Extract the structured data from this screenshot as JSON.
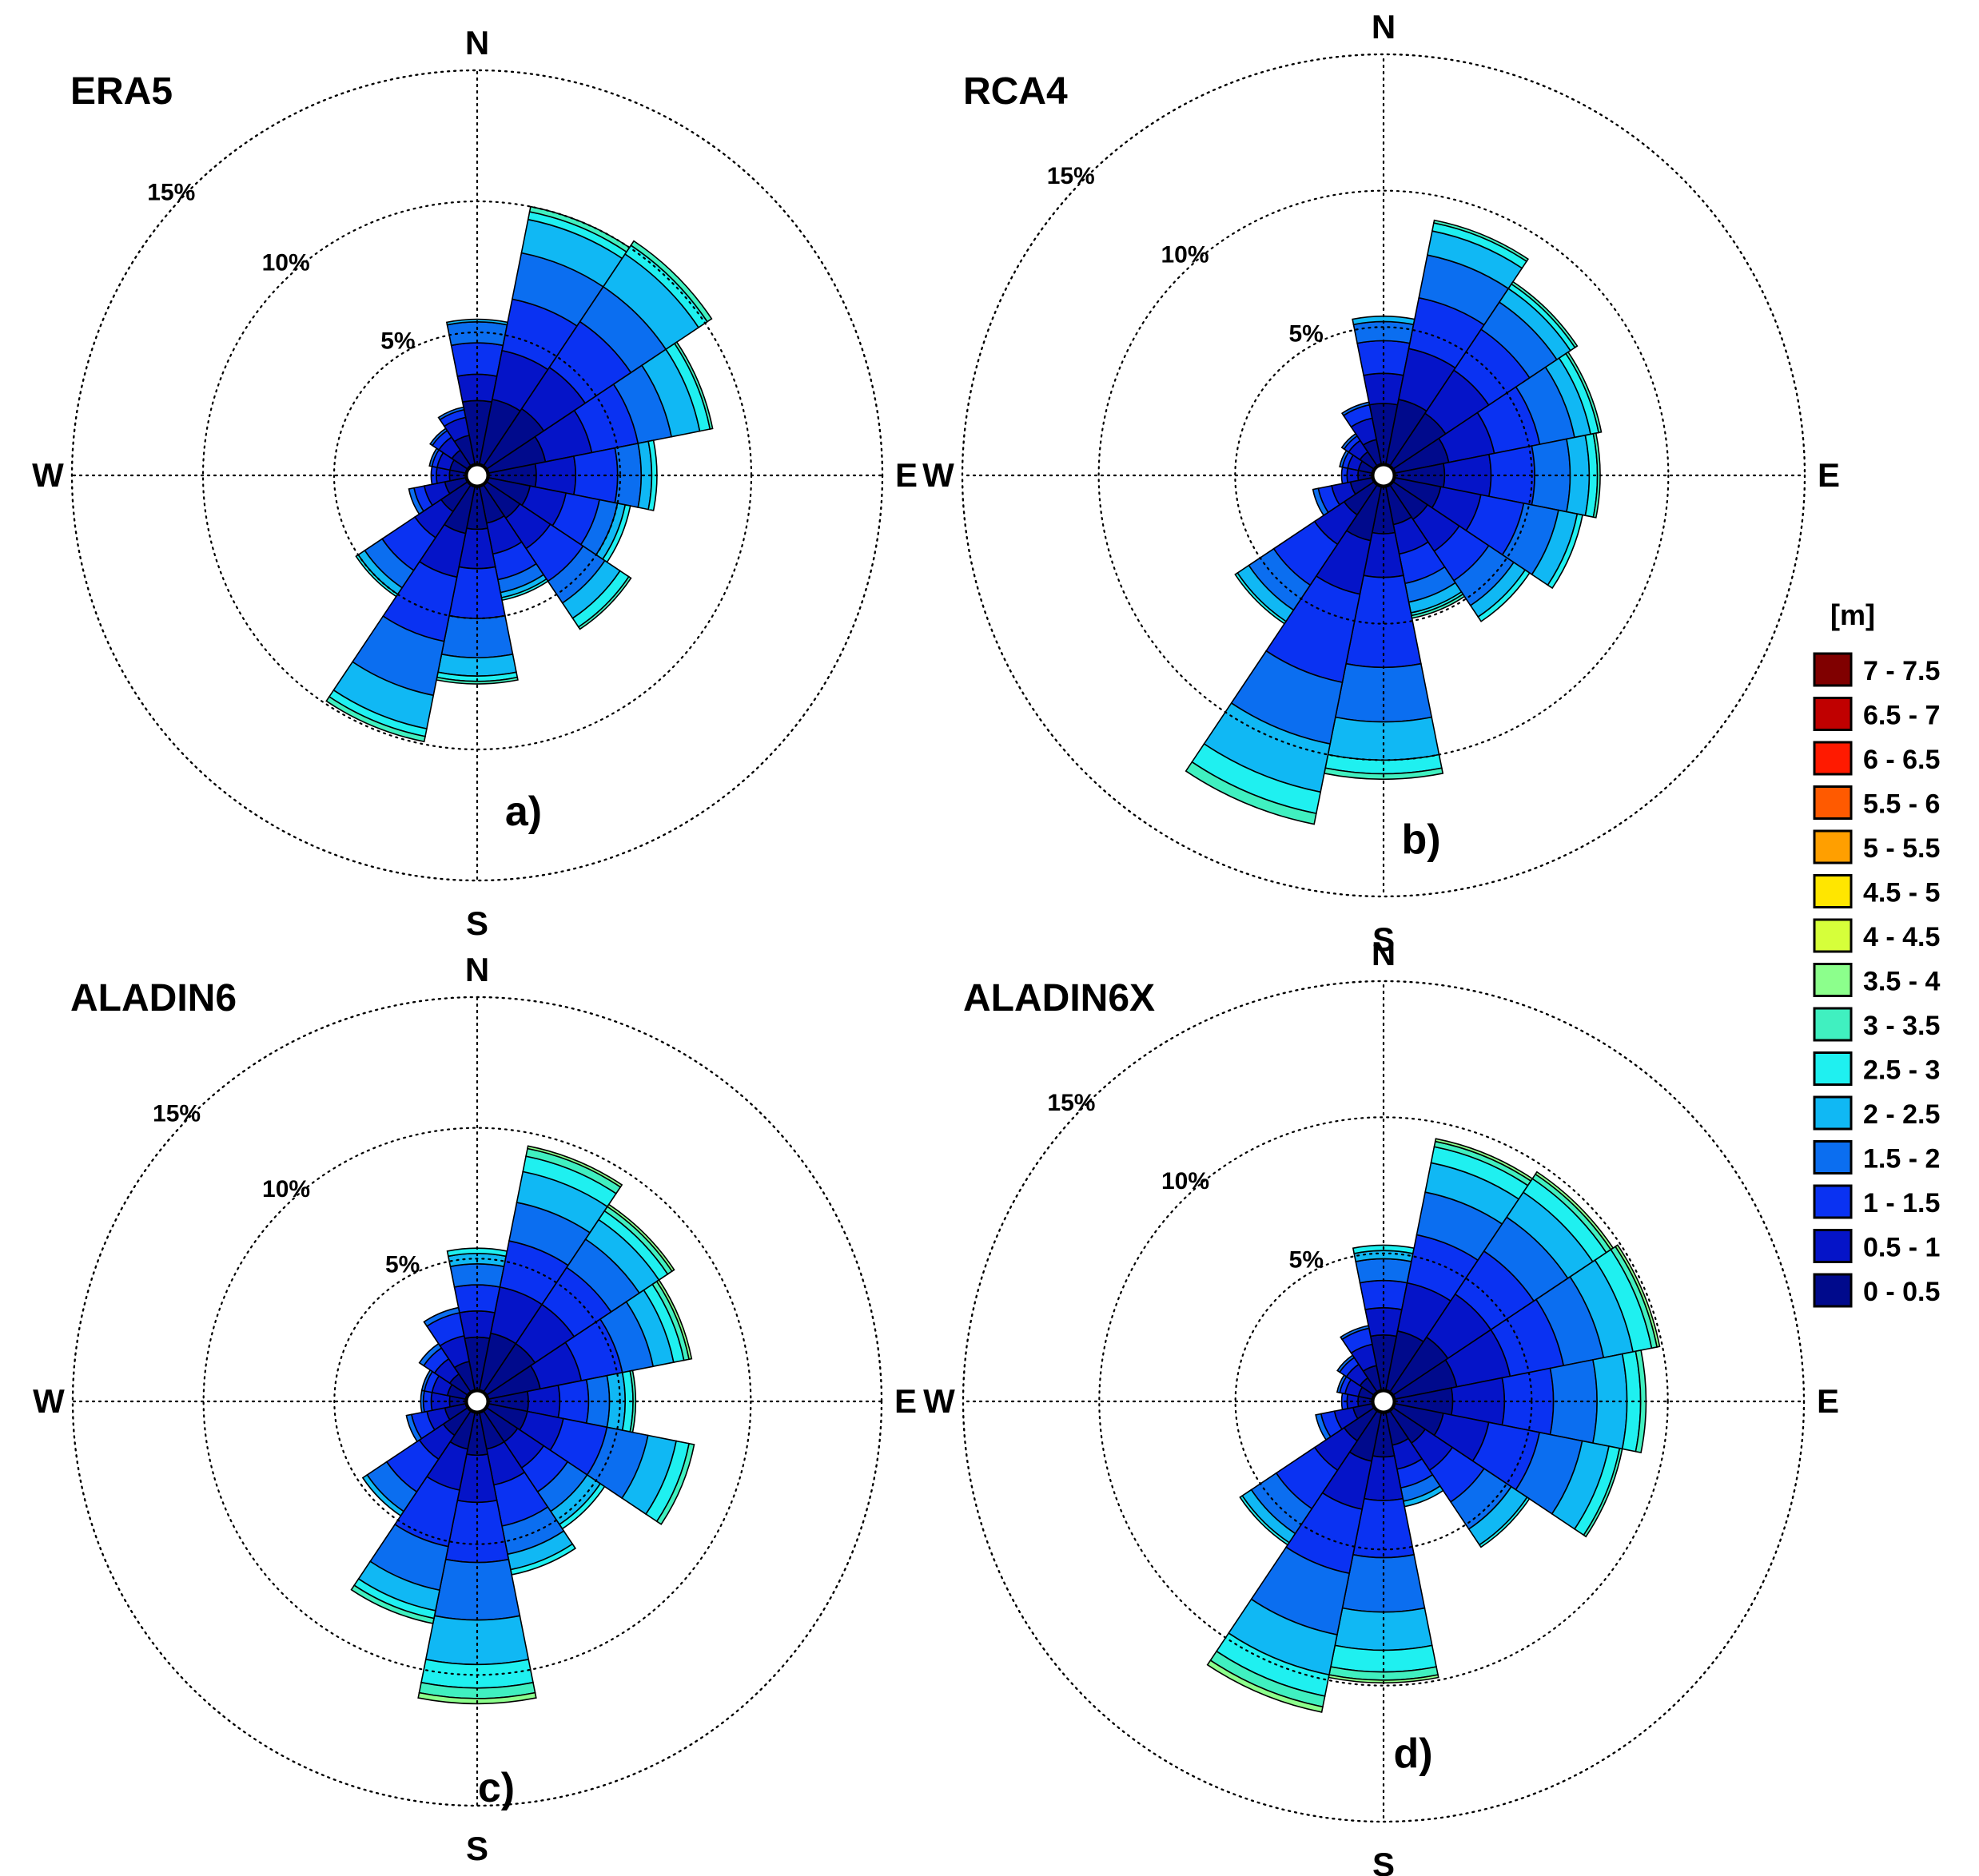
{
  "chart_data": [
    {
      "type": "windrose",
      "title": "ERA5",
      "panel_label": "a)",
      "compass": [
        "N",
        "E",
        "S",
        "W"
      ],
      "ring_labels": [
        "5%",
        "10%",
        "15%"
      ],
      "ring_values": [
        5,
        10,
        15
      ],
      "max_percent": 15,
      "sector_width_deg": 22.5,
      "sectors": [
        {
          "direction_deg": 0,
          "cumulative_percent": [
            2.4,
            3.4,
            4.6,
            5.4,
            5.5
          ]
        },
        {
          "direction_deg": 22.5,
          "cumulative_percent": [
            2.5,
            4.4,
            6.4,
            8.2,
            9.5,
            9.8,
            10.0
          ]
        },
        {
          "direction_deg": 45,
          "cumulative_percent": [
            2.6,
            4.5,
            6.6,
            8.2,
            9.7,
            10.1,
            10.3
          ]
        },
        {
          "direction_deg": 67.5,
          "cumulative_percent": [
            2.2,
            4.0,
            5.8,
            7.1,
            8.2,
            8.6,
            8.7
          ]
        },
        {
          "direction_deg": 90,
          "cumulative_percent": [
            1.8,
            3.3,
            4.9,
            5.8,
            6.2,
            6.4
          ]
        },
        {
          "direction_deg": 112.5,
          "cumulative_percent": [
            1.6,
            3.0,
            4.3,
            5.0,
            5.3,
            5.5
          ]
        },
        {
          "direction_deg": 135,
          "cumulative_percent": [
            1.5,
            2.9,
            4.4,
            5.4,
            6.1,
            6.5,
            6.6
          ]
        },
        {
          "direction_deg": 157.5,
          "cumulative_percent": [
            1.4,
            2.6,
            3.6,
            4.1,
            4.3,
            4.4
          ]
        },
        {
          "direction_deg": 180,
          "cumulative_percent": [
            1.6,
            3.1,
            5.0,
            6.5,
            7.2,
            7.4,
            7.5
          ]
        },
        {
          "direction_deg": 202.5,
          "cumulative_percent": [
            1.8,
            3.5,
            6.0,
            8.1,
            9.4,
            9.7,
            9.9
          ]
        },
        {
          "direction_deg": 225,
          "cumulative_percent": [
            1.2,
            2.4,
            3.9,
            4.7,
            5.0,
            5.1
          ]
        },
        {
          "direction_deg": 247.5,
          "cumulative_percent": [
            0.8,
            1.6,
            2.0,
            2.2
          ]
        },
        {
          "direction_deg": 270,
          "cumulative_percent": [
            0.6,
            1.1,
            1.3
          ]
        },
        {
          "direction_deg": 292.5,
          "cumulative_percent": [
            0.6,
            1.1,
            1.3,
            1.4
          ]
        },
        {
          "direction_deg": 315,
          "cumulative_percent": [
            0.7,
            1.3,
            1.6,
            1.7
          ]
        },
        {
          "direction_deg": 337.5,
          "cumulative_percent": [
            1.1,
            1.8,
            2.1,
            2.2
          ]
        }
      ]
    },
    {
      "type": "windrose",
      "title": "RCA4",
      "panel_label": "b)",
      "compass": [
        "N",
        "E",
        "S",
        "W"
      ],
      "ring_labels": [
        "5%",
        "10%",
        "15%"
      ],
      "ring_values": [
        5,
        10,
        15
      ],
      "max_percent": 15,
      "sector_width_deg": 22.5,
      "sectors": [
        {
          "direction_deg": 0,
          "cumulative_percent": [
            2.2,
            3.3,
            4.5,
            5.2,
            5.4
          ]
        },
        {
          "direction_deg": 22.5,
          "cumulative_percent": [
            2.4,
            4.3,
            6.2,
            7.8,
            8.7,
            9.0,
            9.1
          ]
        },
        {
          "direction_deg": 45,
          "cumulative_percent": [
            2.3,
            4.2,
            6.0,
            7.2,
            7.8,
            8.0,
            8.1
          ]
        },
        {
          "direction_deg": 67.5,
          "cumulative_percent": [
            2.0,
            3.7,
            5.4,
            6.7,
            7.3,
            7.6,
            7.7
          ]
        },
        {
          "direction_deg": 90,
          "cumulative_percent": [
            1.8,
            3.5,
            5.1,
            6.4,
            7.1,
            7.4,
            7.5
          ]
        },
        {
          "direction_deg": 112.5,
          "cumulative_percent": [
            1.7,
            3.2,
            4.8,
            6.1,
            6.8,
            7.0
          ]
        },
        {
          "direction_deg": 135,
          "cumulative_percent": [
            1.5,
            2.9,
            4.2,
            5.3,
            5.8,
            6.0
          ]
        },
        {
          "direction_deg": 157.5,
          "cumulative_percent": [
            1.4,
            2.5,
            3.6,
            4.3,
            4.7,
            4.8,
            4.9
          ]
        },
        {
          "direction_deg": 180,
          "cumulative_percent": [
            1.7,
            3.3,
            6.6,
            8.6,
            10.0,
            10.5,
            10.7
          ]
        },
        {
          "direction_deg": 202.5,
          "cumulative_percent": [
            2.0,
            4.0,
            7.3,
            9.6,
            11.4,
            12.2,
            12.6
          ]
        },
        {
          "direction_deg": 225,
          "cumulative_percent": [
            1.3,
            2.6,
            4.4,
            5.5,
            6.0,
            6.1
          ]
        },
        {
          "direction_deg": 247.5,
          "cumulative_percent": [
            0.8,
            1.5,
            2.0,
            2.2
          ]
        },
        {
          "direction_deg": 270,
          "cumulative_percent": [
            0.5,
            0.9,
            1.1
          ]
        },
        {
          "direction_deg": 292.5,
          "cumulative_percent": [
            0.5,
            0.9,
            1.1,
            1.2
          ]
        },
        {
          "direction_deg": 315,
          "cumulative_percent": [
            0.6,
            1.1,
            1.3,
            1.4
          ]
        },
        {
          "direction_deg": 337.5,
          "cumulative_percent": [
            0.9,
            1.7,
            2.2,
            2.3
          ]
        }
      ]
    },
    {
      "type": "windrose",
      "title": "ALADIN6",
      "panel_label": "c)",
      "compass": [
        "N",
        "E",
        "S",
        "W"
      ],
      "ring_labels": [
        "5%",
        "10%",
        "15%"
      ],
      "ring_values": [
        5,
        10,
        15
      ],
      "max_percent": 15,
      "sector_width_deg": 22.5,
      "sectors": [
        {
          "direction_deg": 0,
          "cumulative_percent": [
            2.0,
            3.0,
            4.0,
            4.8,
            5.2,
            5.4
          ]
        },
        {
          "direction_deg": 22.5,
          "cumulative_percent": [
            2.2,
            4.0,
            5.8,
            7.3,
            8.5,
            9.1,
            9.4,
            9.5
          ]
        },
        {
          "direction_deg": 45,
          "cumulative_percent": [
            2.2,
            4.0,
            5.7,
            7.0,
            7.9,
            8.3,
            8.5,
            8.6
          ]
        },
        {
          "direction_deg": 67.5,
          "cumulative_percent": [
            2.0,
            3.6,
            5.2,
            6.4,
            7.2,
            7.6,
            7.8,
            7.9
          ]
        },
        {
          "direction_deg": 90,
          "cumulative_percent": [
            1.5,
            2.7,
            3.8,
            4.6,
            5.2,
            5.5,
            5.6
          ]
        },
        {
          "direction_deg": 112.5,
          "cumulative_percent": [
            1.5,
            2.9,
            4.6,
            6.2,
            7.3,
            7.8,
            8.0
          ]
        },
        {
          "direction_deg": 135,
          "cumulative_percent": [
            1.4,
            2.6,
            3.7,
            4.6,
            5.2,
            5.4
          ]
        },
        {
          "direction_deg": 157.5,
          "cumulative_percent": [
            1.4,
            2.8,
            4.4,
            5.5,
            6.1,
            6.3
          ]
        },
        {
          "direction_deg": 180,
          "cumulative_percent": [
            1.6,
            3.4,
            5.7,
            7.9,
            9.6,
            10.5,
            10.9,
            11.1
          ]
        },
        {
          "direction_deg": 202.5,
          "cumulative_percent": [
            1.4,
            3.0,
            5.2,
            6.9,
            7.7,
            8.0,
            8.2
          ]
        },
        {
          "direction_deg": 225,
          "cumulative_percent": [
            1.1,
            2.2,
            3.7,
            4.6,
            4.8
          ]
        },
        {
          "direction_deg": 247.5,
          "cumulative_percent": [
            0.8,
            1.5,
            2.1,
            2.3
          ]
        },
        {
          "direction_deg": 270,
          "cumulative_percent": [
            0.6,
            1.3,
            1.6,
            1.7
          ]
        },
        {
          "direction_deg": 292.5,
          "cumulative_percent": [
            0.7,
            1.3,
            1.6,
            1.7
          ]
        },
        {
          "direction_deg": 315,
          "cumulative_percent": [
            0.8,
            1.5,
            2.0,
            2.2
          ]
        },
        {
          "direction_deg": 337.5,
          "cumulative_percent": [
            1.1,
            2.1,
            3.0,
            3.2
          ]
        }
      ]
    },
    {
      "type": "windrose",
      "title": "ALADIN6X",
      "panel_label": "d)",
      "compass": [
        "N",
        "E",
        "S",
        "W"
      ],
      "ring_labels": [
        "5%",
        "10%",
        "15%"
      ],
      "ring_values": [
        5,
        10,
        15
      ],
      "max_percent": 15,
      "sector_width_deg": 22.5,
      "sectors": [
        {
          "direction_deg": 0,
          "cumulative_percent": [
            2.0,
            3.0,
            4.0,
            4.8,
            5.1,
            5.3
          ]
        },
        {
          "direction_deg": 22.5,
          "cumulative_percent": [
            2.2,
            4.0,
            5.8,
            7.4,
            8.5,
            9.1,
            9.3,
            9.4
          ]
        },
        {
          "direction_deg": 45,
          "cumulative_percent": [
            2.4,
            4.3,
            6.2,
            7.7,
            8.8,
            9.4,
            9.6,
            9.7
          ]
        },
        {
          "direction_deg": 67.5,
          "cumulative_percent": [
            2.3,
            4.3,
            6.3,
            7.8,
            8.9,
            9.6,
            9.8,
            9.9
          ]
        },
        {
          "direction_deg": 90,
          "cumulative_percent": [
            2.1,
            4.0,
            5.8,
            7.4,
            8.5,
            9.0,
            9.2
          ]
        },
        {
          "direction_deg": 112.5,
          "cumulative_percent": [
            1.8,
            3.5,
            5.4,
            7.0,
            8.0,
            8.4,
            8.5
          ]
        },
        {
          "direction_deg": 135,
          "cumulative_percent": [
            1.4,
            2.6,
            4.0,
            5.2,
            5.9,
            6.0
          ]
        },
        {
          "direction_deg": 157.5,
          "cumulative_percent": [
            1.2,
            2.1,
            2.8,
            3.3,
            3.5
          ]
        },
        {
          "direction_deg": 180,
          "cumulative_percent": [
            1.6,
            3.2,
            5.3,
            7.3,
            8.7,
            9.5,
            9.8,
            9.9
          ]
        },
        {
          "direction_deg": 202.5,
          "cumulative_percent": [
            1.8,
            3.6,
            6.0,
            8.3,
            9.8,
            10.6,
            11.0,
            11.2
          ]
        },
        {
          "direction_deg": 225,
          "cumulative_percent": [
            1.3,
            2.6,
            4.3,
            5.4,
            5.8,
            5.9
          ]
        },
        {
          "direction_deg": 247.5,
          "cumulative_percent": [
            0.7,
            1.4,
            1.9,
            2.1
          ]
        },
        {
          "direction_deg": 270,
          "cumulative_percent": [
            0.5,
            0.9,
            1.1
          ]
        },
        {
          "direction_deg": 292.5,
          "cumulative_percent": [
            0.5,
            1.0,
            1.2,
            1.3
          ]
        },
        {
          "direction_deg": 315,
          "cumulative_percent": [
            0.6,
            1.2,
            1.5,
            1.6
          ]
        },
        {
          "direction_deg": 337.5,
          "cumulative_percent": [
            0.9,
            1.7,
            2.3,
            2.4
          ]
        }
      ]
    }
  ],
  "legend": {
    "title": "[m]",
    "bins": [
      {
        "label": "7 - 7.5",
        "color": "#800000"
      },
      {
        "label": "6.5 - 7",
        "color": "#c00000"
      },
      {
        "label": "6 - 6.5",
        "color": "#ff1a00"
      },
      {
        "label": "5.5 - 6",
        "color": "#ff5a00"
      },
      {
        "label": "5 - 5.5",
        "color": "#ff9f00"
      },
      {
        "label": "4.5 - 5",
        "color": "#ffe600"
      },
      {
        "label": "4 - 4.5",
        "color": "#d6ff3a"
      },
      {
        "label": "3.5 - 4",
        "color": "#8cff8c"
      },
      {
        "label": "3 - 3.5",
        "color": "#40f0c0"
      },
      {
        "label": "2.5 - 3",
        "color": "#1ff0f0"
      },
      {
        "label": "2 - 2.5",
        "color": "#10b8f4"
      },
      {
        "label": "1.5 - 2",
        "color": "#0b6ef0"
      },
      {
        "label": "1 - 1.5",
        "color": "#0a32f2"
      },
      {
        "label": "0.5 - 1",
        "color": "#0514c8"
      },
      {
        "label": "0 - 0.5",
        "color": "#000a8c"
      }
    ]
  }
}
